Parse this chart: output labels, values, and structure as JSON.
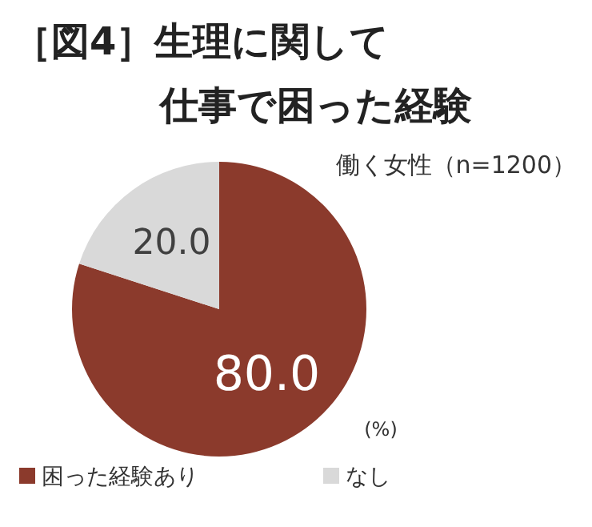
{
  "chart_data": {
    "type": "pie",
    "title": "［図4］生理に関して",
    "subtitle": "仕事で困った経験",
    "categories": [
      "困った経験あり",
      "なし"
    ],
    "values": [
      80.0,
      20.0
    ],
    "colors": [
      "#8b3a2c",
      "#d9d9d9"
    ],
    "value_labels": [
      "80.0",
      "20.0"
    ],
    "annotations": [
      "働く女性（n=1200）",
      "(%)"
    ],
    "legend": "bottom left"
  }
}
